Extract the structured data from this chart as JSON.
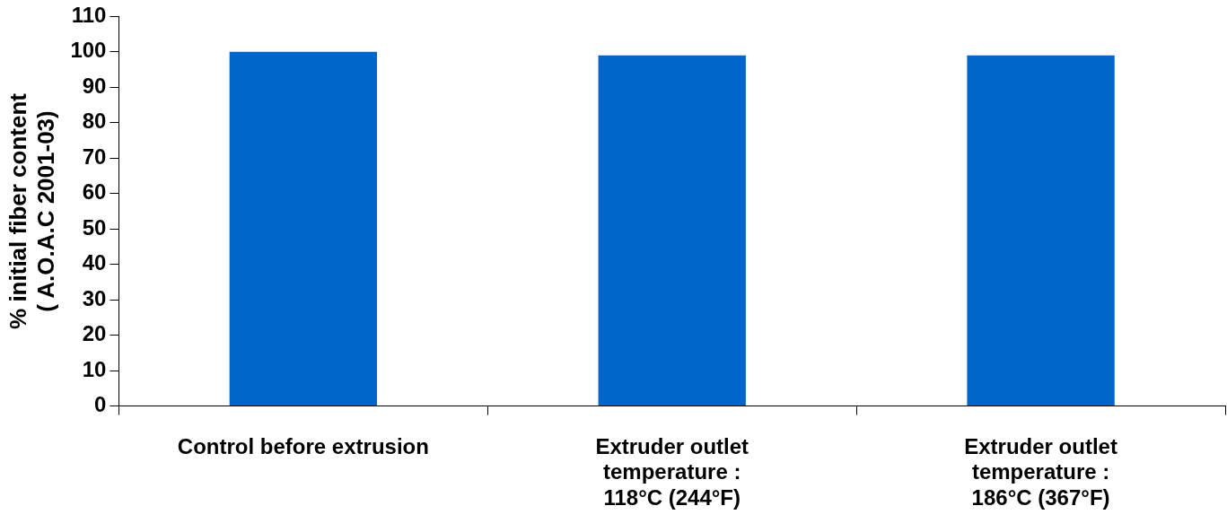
{
  "chart_data": {
    "type": "bar",
    "ylabel": "% initial fiber content\n( A.O.A.C 2001-03)",
    "categories": [
      "Control before extrusion",
      "Extruder outlet\ntemperature :\n118°C (244°F)",
      "Extruder outlet\ntemperature :\n186°C (367°F)"
    ],
    "values": [
      100,
      99,
      99
    ],
    "color": "#0066cc",
    "ylim": [
      0,
      110
    ],
    "yticks": [
      0,
      10,
      20,
      30,
      40,
      50,
      60,
      70,
      80,
      90,
      100,
      110
    ],
    "grid": false,
    "legend": false
  }
}
